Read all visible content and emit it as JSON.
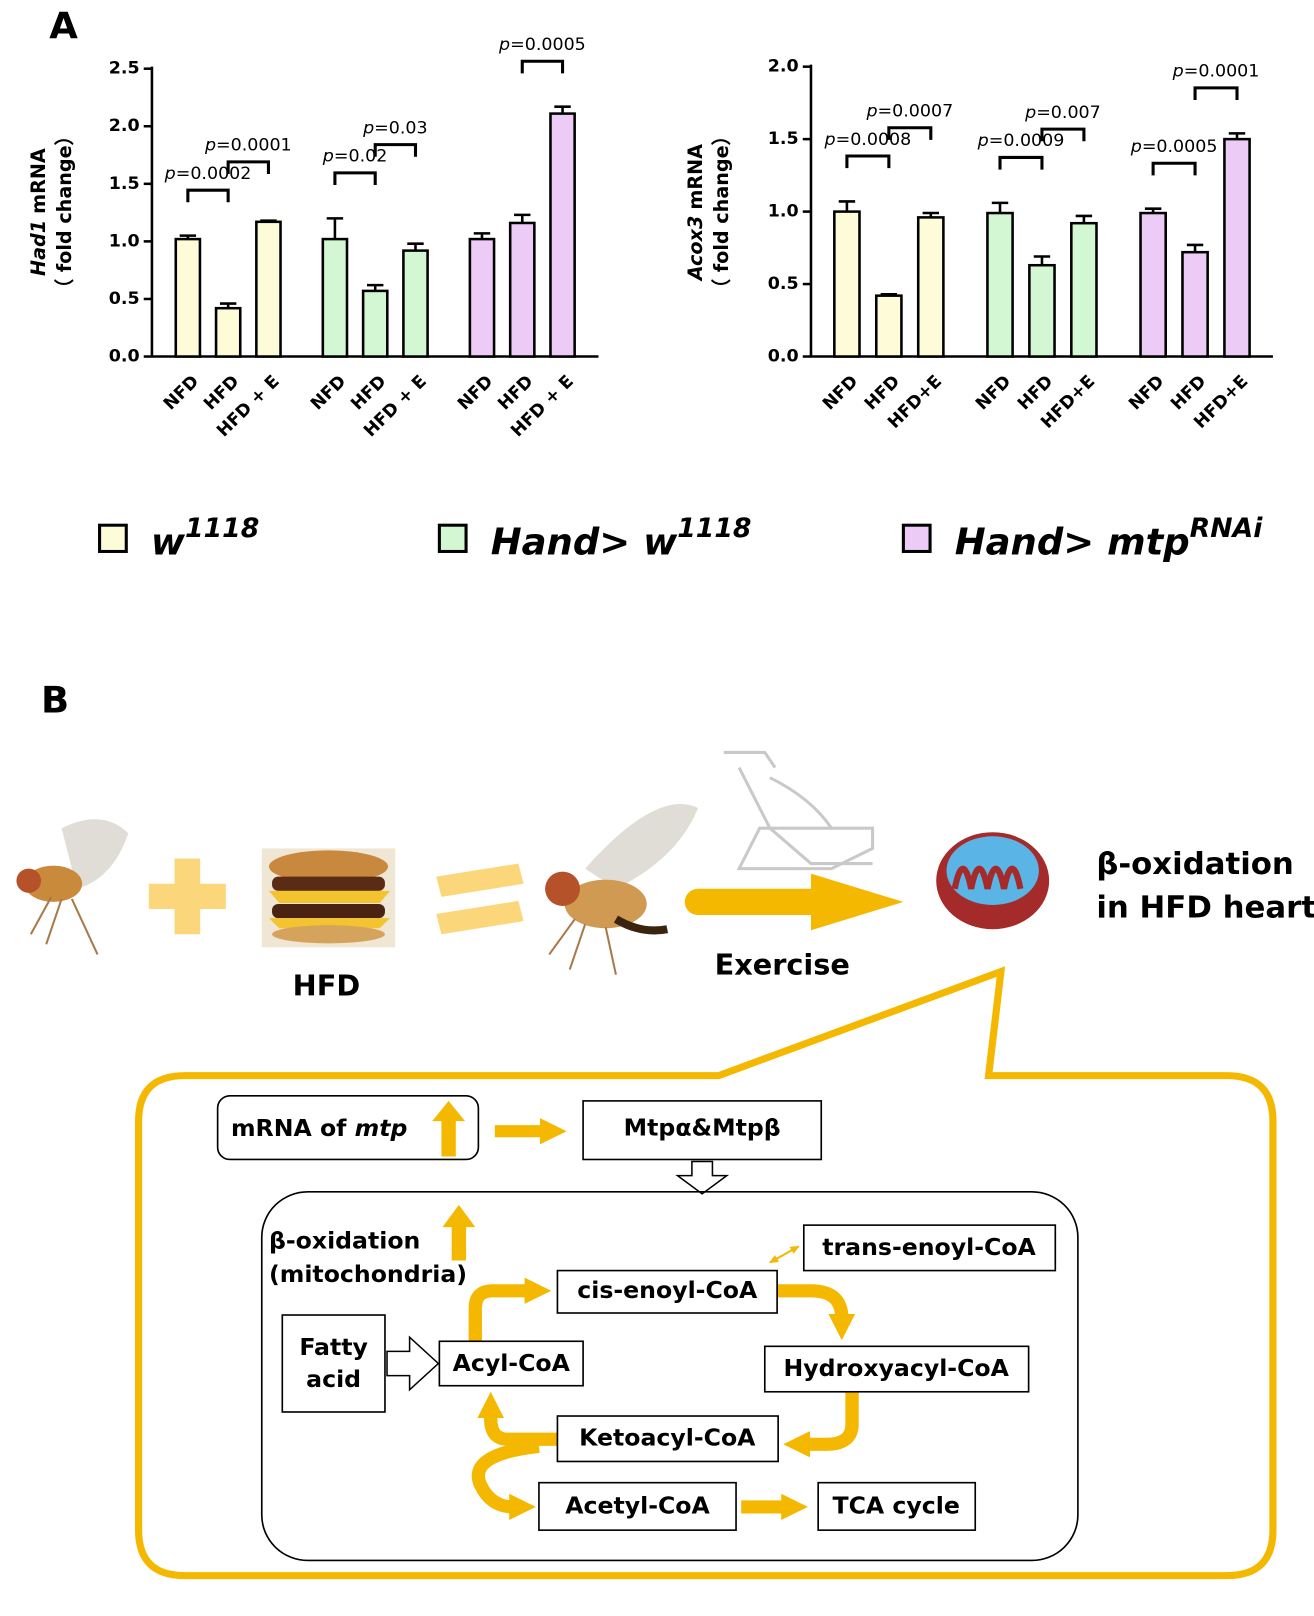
{
  "panel_a_label": "A",
  "chart_data": [
    {
      "type": "bar",
      "ylabel": [
        "Had1",
        "mRNA",
        "（ fold change）"
      ],
      "categories": [
        "NFD",
        "HFD",
        "HFD + E",
        "NFD",
        "HFD",
        "HFD + E",
        "NFD",
        "HFD",
        "HFD + E"
      ],
      "values": [
        1.02,
        0.42,
        1.17,
        1.02,
        0.57,
        0.92,
        1.02,
        1.16,
        2.11
      ],
      "errors": [
        0.03,
        0.04,
        0.01,
        0.18,
        0.05,
        0.06,
        0.05,
        0.07,
        0.06
      ],
      "colors": [
        "#fdfbd8",
        "#fdfbd8",
        "#fdfbd8",
        "#d3f7d3",
        "#d3f7d3",
        "#d3f7d3",
        "#eccbf6",
        "#eccbf6",
        "#eccbf6"
      ],
      "ylim": [
        0,
        2.5
      ],
      "yticks": [
        {
          "value": 0,
          "label": "0.0"
        },
        0.5,
        {
          "value": 1,
          "label": "1.0"
        },
        1.5,
        {
          "value": 2,
          "label": "2.0"
        },
        2.5
      ],
      "p_symbol": "p",
      "brackets": [
        {
          "from": 0,
          "to": 1,
          "label": "=0.0002"
        },
        {
          "from": 1,
          "to": 2,
          "label": "=0.0001"
        },
        {
          "from": 3,
          "to": 4,
          "label": "=0.02"
        },
        {
          "from": 4,
          "to": 5,
          "label": "=0.03"
        },
        {
          "from": 7,
          "to": 8,
          "label": "=0.0005"
        }
      ]
    },
    {
      "type": "bar",
      "ylabel": [
        "Acox3",
        "mRNA",
        "（ fold change）"
      ],
      "categories": [
        "NFD",
        "HFD",
        "HFD+E",
        "NFD",
        "HFD",
        "HFD+E",
        "NFD",
        "HFD",
        "HFD+E"
      ],
      "values": [
        1.0,
        0.42,
        0.96,
        0.99,
        0.63,
        0.92,
        0.99,
        0.72,
        1.5
      ],
      "errors": [
        0.07,
        0.01,
        0.03,
        0.07,
        0.06,
        0.05,
        0.03,
        0.05,
        0.04
      ],
      "colors": [
        "#fdfbd8",
        "#fdfbd8",
        "#fdfbd8",
        "#d3f7d3",
        "#d3f7d3",
        "#d3f7d3",
        "#eccbf6",
        "#eccbf6",
        "#eccbf6"
      ],
      "ylim": [
        0,
        2
      ],
      "yticks": [
        {
          "value": 0,
          "label": "0.0"
        },
        0.5,
        {
          "value": 1,
          "label": "1.0"
        },
        1.5,
        {
          "value": 2,
          "label": "2.0"
        }
      ],
      "p_symbol": "p",
      "brackets": [
        {
          "from": 0,
          "to": 1,
          "label": "=0.0008"
        },
        {
          "from": 1,
          "to": 2,
          "label": "=0.0007"
        },
        {
          "from": 3,
          "to": 4,
          "label": "=0.0009"
        },
        {
          "from": 4,
          "to": 5,
          "label": "=0.007"
        },
        {
          "from": 6,
          "to": 7,
          "label": "=0.0005"
        },
        {
          "from": 7,
          "to": 8,
          "label": "=0.0001"
        }
      ]
    }
  ],
  "legend": [
    {
      "name": "w",
      "sup": "1118",
      "color": "#fdfbd8"
    },
    {
      "name": "Hand> w",
      "sup": "1118",
      "color": "#d3f7d3"
    },
    {
      "name": "Hand> mtp",
      "sup": "RNAi",
      "color": "#eccbf6"
    }
  ],
  "diagram": {
    "label": "B",
    "hfd": "HFD",
    "exercise": "Exercise",
    "result": [
      "β-oxidation",
      "in HFD heart"
    ],
    "mrna": [
      "mRNA of ",
      "mtp"
    ],
    "protein": "Mtpα&Mtpβ",
    "pathway": [
      "β-oxidation",
      "(mitochondria)"
    ],
    "fatty_acid": [
      "Fatty",
      "acid"
    ],
    "nodes": [
      "cis-enoyl-CoA",
      "trans-enoyl-CoA",
      "Acyl-CoA",
      "Hydroxyacyl-CoA",
      "Ketoacyl-CoA",
      "Acetyl-CoA",
      "TCA cycle"
    ]
  }
}
